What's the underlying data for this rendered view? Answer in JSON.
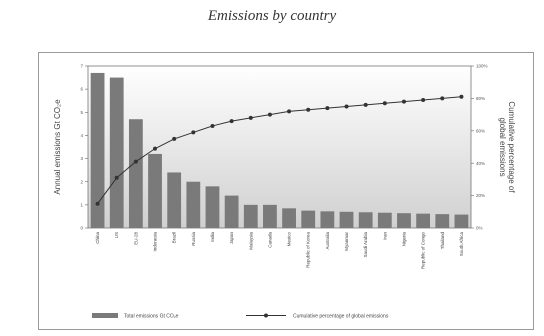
{
  "chart_data": {
    "type": "bar",
    "title": "Emissions by country",
    "categories": [
      "China",
      "US",
      "EU-28",
      "Indonesia",
      "Brazil",
      "Russia",
      "India",
      "Japan",
      "Malaysia",
      "Canada",
      "Mexico",
      "Republic of Korea",
      "Australia",
      "Myanmar",
      "Saudi Arabia",
      "Iran",
      "Nigeria",
      "Republic of Congo",
      "Thailand",
      "South Africa"
    ],
    "ylabel": "Annual emissions Gt CO₂e",
    "y2label": "Cumulative percentage of global emissions",
    "ylim": [
      0,
      7
    ],
    "yticks": [
      "0",
      "1",
      "2",
      "3",
      "4",
      "5",
      "6",
      "7"
    ],
    "y2lim": [
      0,
      100
    ],
    "y2ticks": [
      "0%",
      "20%",
      "40%",
      "60%",
      "80%",
      "100%"
    ],
    "legend_position": "bottom",
    "grid": false,
    "colors": {
      "bar": "#7a7a7a",
      "line": "#333333",
      "bg_top": "#ffffff",
      "bg_bottom": "#d0d0d0"
    },
    "series": [
      {
        "name": "Total emissions Gt CO₂e",
        "type": "bar",
        "values": [
          6.7,
          6.5,
          4.7,
          3.2,
          2.4,
          2.0,
          1.8,
          1.4,
          1.0,
          1.0,
          0.85,
          0.75,
          0.72,
          0.7,
          0.68,
          0.66,
          0.64,
          0.62,
          0.6,
          0.58
        ]
      },
      {
        "name": "Cumulative percentage of global emissions",
        "type": "line",
        "axis": "right",
        "values": [
          15,
          31,
          41,
          49,
          55,
          59,
          63,
          66,
          68,
          70,
          72,
          73,
          74,
          75,
          76,
          77,
          78,
          79,
          80,
          81
        ]
      }
    ]
  }
}
